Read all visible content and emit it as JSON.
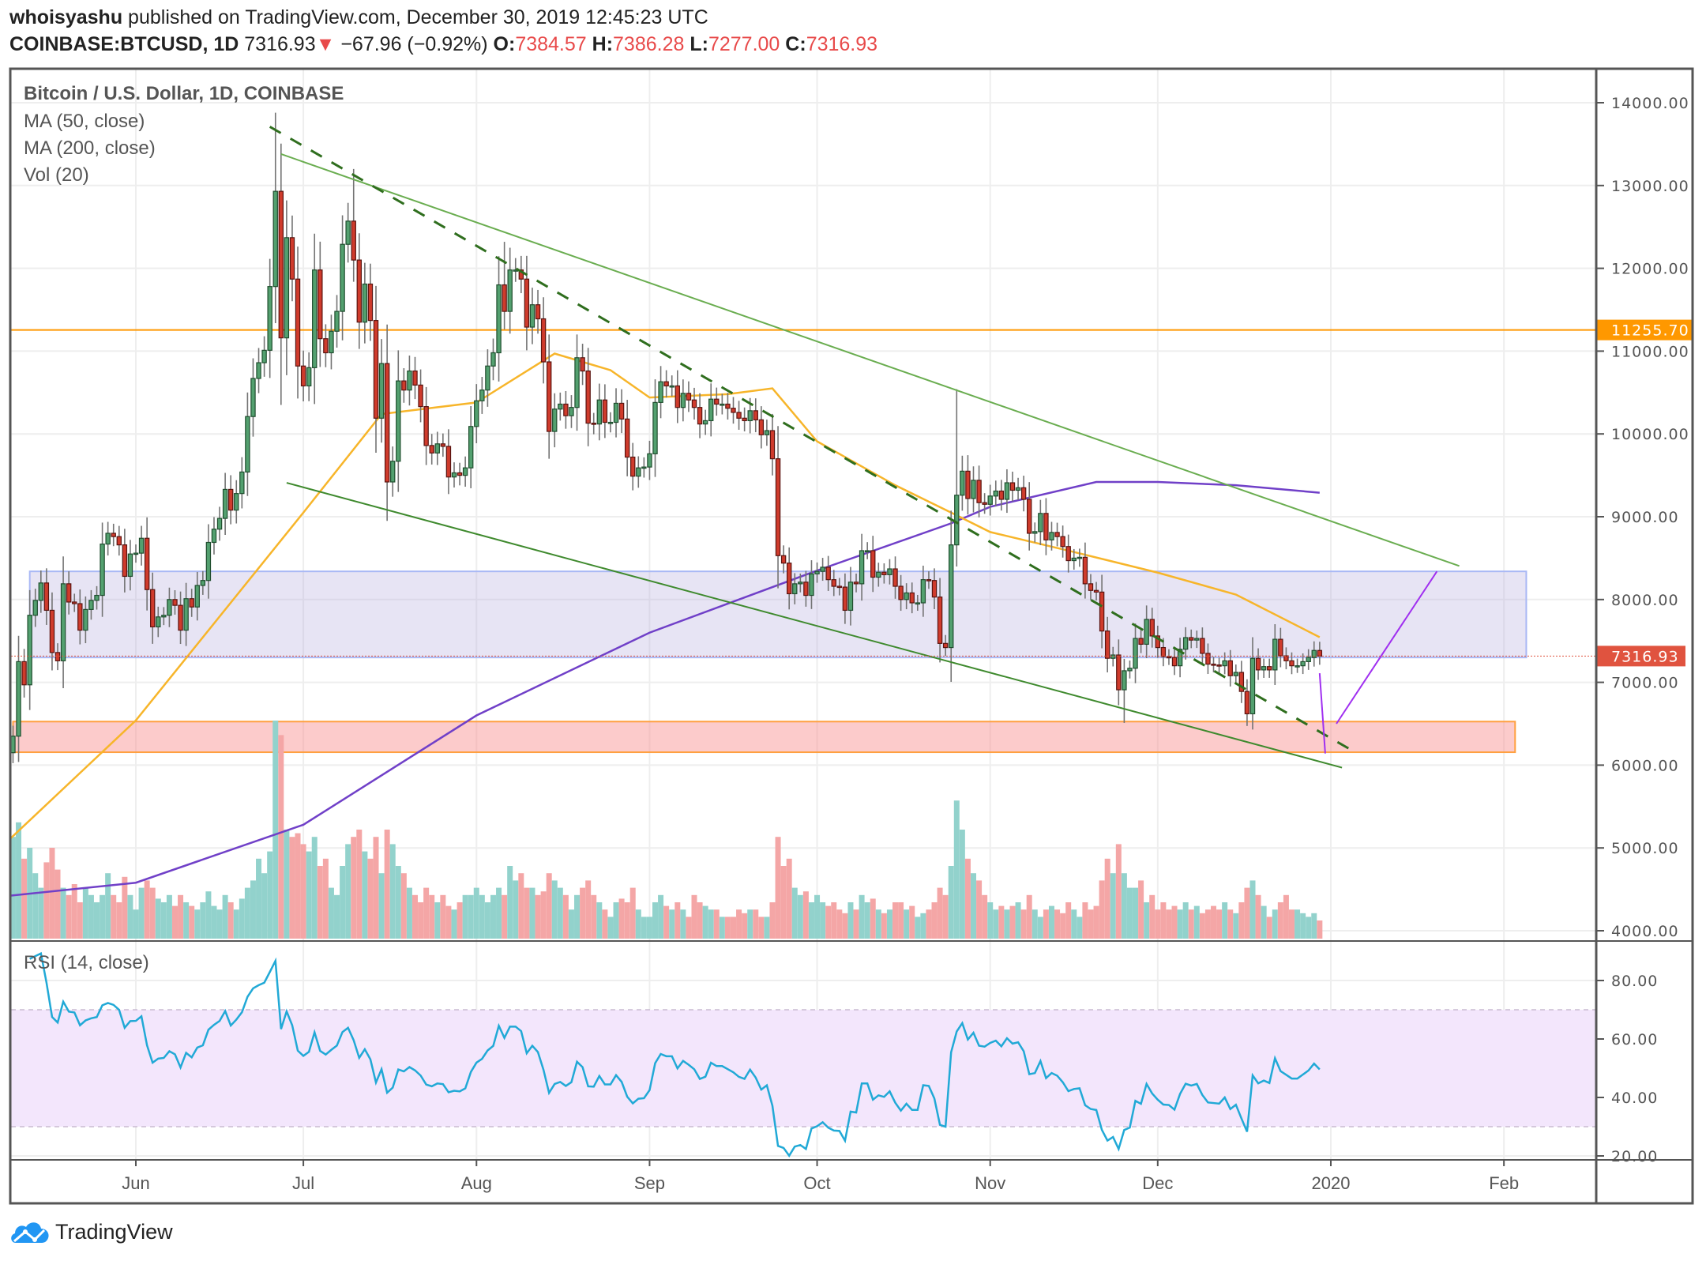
{
  "header": {
    "author": "whoisyashu",
    "published": "published on TradingView.com, December 30, 2019 12:45:23 UTC",
    "symbol": "COINBASE:BTCUSD, 1D",
    "last": "7316.93",
    "change": "−67.96 (−0.92%)",
    "o_label": "O:",
    "o": "7384.57",
    "h_label": "H:",
    "h": "7386.28",
    "l_label": "L:",
    "l": "7277.00",
    "c_label": "C:",
    "c": "7316.93"
  },
  "legend": {
    "title": "Bitcoin / U.S. Dollar, 1D, COINBASE",
    "ma50": "MA (50, close)",
    "ma200": "MA (200, close)",
    "vol": "Vol (20)",
    "rsi": "RSI (14, close)"
  },
  "footer": {
    "brand": "TradingView"
  },
  "colors": {
    "up_body": "#53a06f",
    "up_border": "#1f4e2e",
    "down_body": "#cf3b2c",
    "down_border": "#5a1410",
    "vol_up": "#92d2cc",
    "vol_down": "#f4a6a6",
    "ma50": "#f7b52a",
    "ma200": "#7040c8",
    "rsi": "#21a9d6",
    "resistance": "#ff9800",
    "last_price": "#e0533f"
  },
  "chart_data": {
    "type": "candlestick",
    "start_date": "2019-05-09",
    "close": [
      6150,
      6350,
      7250,
      6970,
      7810,
      7990,
      8200,
      7870,
      7360,
      7260,
      8190,
      7970,
      7950,
      7630,
      7880,
      7990,
      8050,
      8670,
      8800,
      8760,
      8660,
      8280,
      8550,
      8560,
      8740,
      8120,
      7670,
      7790,
      7810,
      8000,
      7930,
      7630,
      8010,
      7910,
      8170,
      8230,
      8690,
      8850,
      8980,
      9330,
      9080,
      9280,
      9540,
      10210,
      10670,
      10860,
      11010,
      11780,
      12930,
      11160,
      12370,
      11870,
      10820,
      10580,
      10800,
      11980,
      11150,
      10980,
      11240,
      11480,
      12290,
      12570,
      12100,
      11350,
      11810,
      11370,
      10190,
      10850,
      9420,
      9670,
      10640,
      10530,
      10760,
      10590,
      10330,
      9860,
      9770,
      9880,
      9850,
      9480,
      9530,
      9500,
      9590,
      10090,
      10400,
      10530,
      10820,
      10980,
      11800,
      11480,
      11980,
      11980,
      11870,
      11290,
      11560,
      11390,
      10870,
      10030,
      10300,
      10360,
      10220,
      10320,
      10920,
      10760,
      10130,
      10120,
      10410,
      10140,
      10140,
      10370,
      10180,
      9720,
      9490,
      9590,
      9600,
      9760,
      10380,
      10630,
      10580,
      10580,
      10320,
      10490,
      10410,
      10320,
      10120,
      10160,
      10420,
      10360,
      10360,
      10310,
      10260,
      10190,
      10160,
      10280,
      10170,
      9990,
      10040,
      9700,
      8530,
      8440,
      8070,
      8190,
      8210,
      8050,
      8310,
      8340,
      8390,
      8240,
      8160,
      8150,
      7870,
      8210,
      8190,
      8590,
      8590,
      8270,
      8330,
      8300,
      8370,
      8160,
      8000,
      8080,
      7960,
      7960,
      8240,
      8230,
      8030,
      7470,
      7420,
      8660,
      9260,
      9550,
      9220,
      9440,
      9170,
      9150,
      9250,
      9310,
      9210,
      9410,
      9320,
      9350,
      9210,
      8800,
      8820,
      9040,
      8720,
      8810,
      8760,
      8640,
      8470,
      8500,
      8510,
      8190,
      8110,
      8090,
      7620,
      7290,
      7330,
      6910,
      7140,
      7170,
      7530,
      7460,
      7760,
      7560,
      7420,
      7310,
      7300,
      7200,
      7400,
      7540,
      7510,
      7530,
      7350,
      7220,
      7210,
      7200,
      7260,
      7080,
      7120,
      6890,
      6620,
      7290,
      7150,
      7190,
      7150,
      7520,
      7320,
      7260,
      7200,
      7200,
      7250,
      7300,
      7385,
      7316.93
    ],
    "first_open": 6000,
    "notable_highs": {
      "2019-06-26": 13880,
      "2019-07-10": 13200,
      "2019-08-06": 12320,
      "2019-10-26": 10540
    },
    "notable_lows": {
      "2019-06-27": 10350,
      "2019-11-25": 6510,
      "2019-12-18": 6430
    },
    "volume_k": [
      20,
      28,
      32,
      22,
      25,
      18,
      14,
      21,
      25,
      19,
      14,
      12,
      15,
      10,
      14,
      12,
      10,
      12,
      18,
      12,
      10,
      17,
      12,
      8,
      14,
      16,
      14,
      11,
      10,
      12,
      9,
      12,
      10,
      9,
      8,
      10,
      13,
      9,
      8,
      12,
      10,
      8,
      11,
      14,
      16,
      22,
      18,
      24,
      60,
      56,
      30,
      28,
      29,
      26,
      24,
      28,
      20,
      22,
      14,
      12,
      20,
      26,
      28,
      30,
      24,
      22,
      28,
      18,
      30,
      26,
      20,
      18,
      14,
      12,
      10,
      14,
      12,
      10,
      12,
      9,
      8,
      10,
      12,
      12,
      14,
      12,
      10,
      12,
      14,
      12,
      20,
      16,
      18,
      14,
      14,
      12,
      13,
      18,
      16,
      14,
      12,
      8,
      12,
      14,
      16,
      12,
      10,
      8,
      6,
      10,
      11,
      10,
      14,
      8,
      6,
      6,
      10,
      12,
      9,
      8,
      10,
      8,
      6,
      12,
      10,
      9,
      8,
      8,
      6,
      6,
      6,
      8,
      7,
      8,
      8,
      6,
      6,
      10,
      28,
      20,
      22,
      14,
      12,
      13,
      10,
      12,
      10,
      9,
      10,
      8,
      7,
      10,
      8,
      12,
      10,
      11,
      8,
      7,
      8,
      10,
      10,
      8,
      9,
      6,
      7,
      8,
      10,
      14,
      12,
      20,
      38,
      30,
      22,
      18,
      16,
      12,
      10,
      8,
      9,
      8,
      9,
      10,
      8,
      12,
      8,
      6,
      8,
      9,
      8,
      7,
      10,
      8,
      6,
      10,
      8,
      9,
      16,
      22,
      18,
      26,
      18,
      14,
      14,
      16,
      10,
      12,
      8,
      10,
      8,
      9,
      8,
      10,
      8,
      9,
      7,
      8,
      9,
      8,
      10,
      8,
      7,
      10,
      14,
      16,
      12,
      9,
      6,
      8,
      10,
      12,
      8,
      8,
      7,
      6,
      7,
      5
    ],
    "ma50": [
      [
        "2019-05-09",
        5080
      ],
      [
        "2019-06-01",
        6540
      ],
      [
        "2019-07-01",
        9050
      ],
      [
        "2019-07-15",
        10240
      ],
      [
        "2019-08-01",
        10380
      ],
      [
        "2019-08-15",
        10970
      ],
      [
        "2019-08-25",
        10770
      ],
      [
        "2019-09-01",
        10440
      ],
      [
        "2019-09-15",
        10480
      ],
      [
        "2019-09-23",
        10550
      ],
      [
        "2019-10-01",
        9910
      ],
      [
        "2019-10-15",
        9380
      ],
      [
        "2019-10-25",
        9050
      ],
      [
        "2019-11-01",
        8815
      ],
      [
        "2019-11-15",
        8590
      ],
      [
        "2019-12-01",
        8325
      ],
      [
        "2019-12-15",
        8060
      ],
      [
        "2019-12-30",
        7545
      ]
    ],
    "ma200": [
      [
        "2019-05-09",
        4420
      ],
      [
        "2019-06-01",
        4580
      ],
      [
        "2019-07-01",
        5280
      ],
      [
        "2019-08-01",
        6600
      ],
      [
        "2019-09-01",
        7600
      ],
      [
        "2019-10-01",
        8350
      ],
      [
        "2019-10-25",
        8920
      ],
      [
        "2019-11-01",
        9120
      ],
      [
        "2019-11-20",
        9420
      ],
      [
        "2019-12-01",
        9420
      ],
      [
        "2019-12-15",
        9380
      ],
      [
        "2019-12-30",
        9290
      ]
    ],
    "rsi_period": 14,
    "rsi_bands": [
      70,
      30
    ],
    "price_axis": {
      "ticks": [
        "14000.00",
        "13000.00",
        "12000.00",
        "11000.00",
        "10000.00",
        "9000.00",
        "8000.00",
        "7000.00",
        "6000.00",
        "5000.00",
        "4000.00"
      ],
      "range": [
        4000,
        14000
      ]
    },
    "rsi_axis": {
      "ticks": [
        "80.00",
        "60.00",
        "40.00",
        "20.00"
      ],
      "range": [
        20,
        80
      ]
    },
    "time_axis": [
      [
        "2019-06-01",
        "Jun"
      ],
      [
        "2019-07-01",
        "Jul"
      ],
      [
        "2019-08-01",
        "Aug"
      ],
      [
        "2019-09-01",
        "Sep"
      ],
      [
        "2019-10-01",
        "Oct"
      ],
      [
        "2019-11-01",
        "Nov"
      ],
      [
        "2019-12-01",
        "Dec"
      ],
      [
        "2020-01-01",
        "2020"
      ],
      [
        "2020-02-01",
        "Feb"
      ]
    ],
    "price_labels": {
      "resistance": "11255.70",
      "last": "7316.93"
    },
    "drawings": {
      "resistance_level": 11255.7,
      "supply_zone": {
        "from": "2019-05-13",
        "to": "2020-02-05",
        "top": 8340,
        "bottom": 7300
      },
      "demand_zone": {
        "from": "2019-05-10",
        "to": "2020-02-03",
        "top": 6526,
        "bottom": 6156
      },
      "upper_trendline": [
        [
          "2019-06-27",
          13380
        ],
        [
          "2020-01-24",
          8405
        ]
      ],
      "lower_trendline": [
        [
          "2019-06-28",
          9410
        ],
        [
          "2020-01-03",
          5970
        ]
      ],
      "dashed_trendline": [
        [
          "2019-06-25",
          13710
        ],
        [
          "2020-01-05",
          6170
        ]
      ],
      "projection": [
        [
          "2019-12-30",
          7110
        ],
        [
          "2019-12-31",
          6140
        ]
      ],
      "projection_up": [
        [
          "2020-01-02",
          6500
        ],
        [
          "2020-01-20",
          8340
        ]
      ]
    }
  }
}
